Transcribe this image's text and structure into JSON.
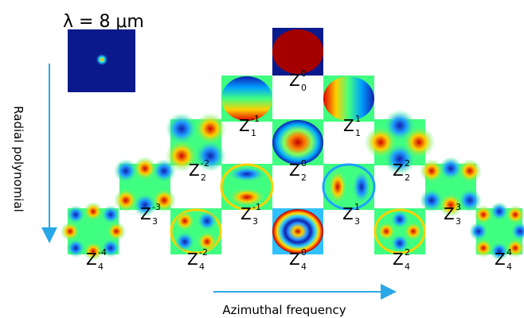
{
  "wavelength_label": "λ = 8 μm",
  "y_axis_label": "Radial polynomial",
  "x_axis_label": "Azimuthal frequency",
  "colors": {
    "arrow": "#29a8e8",
    "inset_background": "#0a1a8c"
  },
  "modes": [
    {
      "letter": "Z",
      "n": "0",
      "m": "0"
    },
    {
      "letter": "Z",
      "n": "1",
      "m": "-1"
    },
    {
      "letter": "Z",
      "n": "1",
      "m": "1"
    },
    {
      "letter": "Z",
      "n": "2",
      "m": "-2"
    },
    {
      "letter": "Z",
      "n": "2",
      "m": "0"
    },
    {
      "letter": "Z",
      "n": "2",
      "m": "2"
    },
    {
      "letter": "Z",
      "n": "3",
      "m": "-3"
    },
    {
      "letter": "Z",
      "n": "3",
      "m": "-1"
    },
    {
      "letter": "Z",
      "n": "3",
      "m": "1"
    },
    {
      "letter": "Z",
      "n": "3",
      "m": "3"
    },
    {
      "letter": "Z",
      "n": "4",
      "m": "-4"
    },
    {
      "letter": "Z",
      "n": "4",
      "m": "-2"
    },
    {
      "letter": "Z",
      "n": "4",
      "m": "0"
    },
    {
      "letter": "Z",
      "n": "4",
      "m": "2"
    },
    {
      "letter": "Z",
      "n": "4",
      "m": "4"
    }
  ]
}
